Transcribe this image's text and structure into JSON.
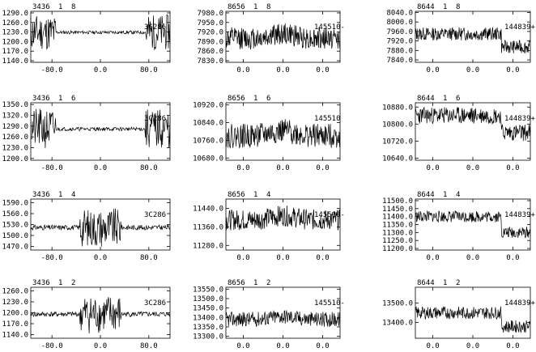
{
  "chart_data": [
    {
      "type": "line",
      "header": [
        "3436",
        "1",
        "8"
      ],
      "source": "3C286",
      "yticks": [
        "1290.0",
        "1260.0",
        "1230.0",
        "1200.0",
        "1170.0",
        "1140.0"
      ],
      "ylim": [
        1135,
        1295
      ],
      "xticks": [
        "-80.0",
        "0.0",
        "80.0"
      ],
      "xlim": [
        -115,
        115
      ],
      "xtick_values": [
        -80,
        0,
        80
      ],
      "shape": "edges",
      "base": 1229,
      "amp": 35,
      "seed": 11
    },
    {
      "type": "line",
      "header": [
        "8656",
        "1",
        "8"
      ],
      "source": "145510-",
      "yticks": [
        "7980.0",
        "7950.0",
        "7920.0",
        "7890.0",
        "7860.0",
        "7830.0"
      ],
      "ylim": [
        7825,
        7985
      ],
      "xticks": [
        "0.0",
        "0.0",
        "0.0"
      ],
      "xlim": [
        -115,
        115
      ],
      "xtick_values": [
        -80,
        0,
        80
      ],
      "shape": "bump",
      "base": 7900,
      "amp": 35,
      "seed": 12
    },
    {
      "type": "line",
      "header": [
        "8644",
        "1",
        "8"
      ],
      "source": "144839+",
      "yticks": [
        "8040.0",
        "8000.0",
        "7960.0",
        "7920.0",
        "7880.0",
        "7840.0"
      ],
      "ylim": [
        7830,
        8045
      ],
      "xticks": [
        "0.0",
        "0.0",
        "0.0"
      ],
      "xlim": [
        -115,
        115
      ],
      "xtick_values": [
        -80,
        0,
        80
      ],
      "shape": "step",
      "base": 7950,
      "base2": 7895,
      "amp": 35,
      "seed": 13
    },
    {
      "type": "line",
      "header": [
        "3436",
        "1",
        "6"
      ],
      "source": "3C286",
      "yticks": [
        "1350.0",
        "1320.0",
        "1290.0",
        "1260.0",
        "1230.0",
        "1200.0"
      ],
      "ylim": [
        1195,
        1355
      ],
      "xticks": [
        "-80.0",
        "0.0",
        "80.0"
      ],
      "xlim": [
        -115,
        115
      ],
      "xtick_values": [
        -80,
        0,
        80
      ],
      "shape": "edges",
      "base": 1282,
      "amp": 35,
      "seed": 21
    },
    {
      "type": "line",
      "header": [
        "8656",
        "1",
        "6"
      ],
      "source": "145510",
      "yticks": [
        "10920.0",
        "10840.0",
        "10760.0",
        "10680.0"
      ],
      "ylim": [
        10670,
        10930
      ],
      "xticks": [
        "0.0",
        "0.0",
        "0.0"
      ],
      "xlim": [
        -115,
        115
      ],
      "xtick_values": [
        -80,
        0,
        80
      ],
      "shape": "bump",
      "base": 10780,
      "amp": 55,
      "seed": 22
    },
    {
      "type": "line",
      "header": [
        "8644",
        "1",
        "6"
      ],
      "source": "144839+",
      "yticks": [
        "10880.0",
        "10800.0",
        "10720.0",
        "10640.0"
      ],
      "ylim": [
        10630,
        10900
      ],
      "xticks": [
        "0.0",
        "0.0",
        "0.0"
      ],
      "xlim": [
        -115,
        115
      ],
      "xtick_values": [
        -80,
        0,
        80
      ],
      "shape": "step",
      "base": 10840,
      "base2": 10760,
      "amp": 50,
      "seed": 23
    },
    {
      "type": "line",
      "header": [
        "3436",
        "1",
        "4"
      ],
      "source": "3C286",
      "yticks": [
        "1590.0",
        "1560.0",
        "1530.0",
        "1500.0",
        "1470.0"
      ],
      "ylim": [
        1460,
        1600
      ],
      "xticks": [
        "-80.0",
        "0.0",
        "80.0"
      ],
      "xlim": [
        -115,
        115
      ],
      "xtick_values": [
        -80,
        0,
        80
      ],
      "shape": "middle",
      "base": 1522,
      "amp": 35,
      "seed": 31
    },
    {
      "type": "line",
      "header": [
        "8656",
        "1",
        "4"
      ],
      "source": "145510-",
      "yticks": [
        "11440.0",
        "11360.0",
        "11280.0"
      ],
      "ylim": [
        11260,
        11480
      ],
      "xticks": [
        "0.0",
        "0.0",
        "0.0"
      ],
      "xlim": [
        -115,
        115
      ],
      "xtick_values": [
        -80,
        0,
        80
      ],
      "shape": "bump",
      "base": 11390,
      "amp": 45,
      "seed": 32
    },
    {
      "type": "line",
      "header": [
        "8644",
        "1",
        "4"
      ],
      "source": "144839+",
      "yticks": [
        "11500.0",
        "11450.0",
        "11400.0",
        "11350.0",
        "11300.0",
        "11250.0",
        "11200.0"
      ],
      "ylim": [
        11190,
        11510
      ],
      "xticks": [
        "0.0",
        "0.0",
        "0.0"
      ],
      "xlim": [
        -115,
        115
      ],
      "xtick_values": [
        -80,
        0,
        80
      ],
      "shape": "step",
      "base": 11400,
      "base2": 11300,
      "amp": 45,
      "seed": 33
    },
    {
      "type": "line",
      "header": [
        "3436",
        "1",
        "2"
      ],
      "source": "3C286",
      "yticks": [
        "1260.0",
        "1230.0",
        "1200.0",
        "1170.0",
        "1140.0"
      ],
      "ylim": [
        1130,
        1270
      ],
      "xticks": [
        "-80.0",
        "0.0",
        "80.0"
      ],
      "xlim": [
        -115,
        115
      ],
      "xtick_values": [
        -80,
        0,
        80
      ],
      "shape": "middle",
      "base": 1196,
      "amp": 35,
      "seed": 41
    },
    {
      "type": "line",
      "header": [
        "8656",
        "1",
        "2"
      ],
      "source": "145510-",
      "yticks": [
        "13550.0",
        "13500.0",
        "13450.0",
        "13400.0",
        "13350.0",
        "13300.0"
      ],
      "ylim": [
        13290,
        13560
      ],
      "xticks": [
        "0.0",
        "0.0",
        "0.0"
      ],
      "xlim": [
        -115,
        115
      ],
      "xtick_values": [
        -80,
        0,
        80
      ],
      "shape": "bump",
      "base": 13390,
      "amp": 40,
      "seed": 42
    },
    {
      "type": "line",
      "header": [
        "8644",
        "1",
        "2"
      ],
      "source": "144839+",
      "yticks": [
        "13500.0",
        "13400.0"
      ],
      "ylim": [
        13320,
        13580
      ],
      "xticks": [
        "0.0",
        "0.0",
        "0.0"
      ],
      "xlim": [
        -115,
        115
      ],
      "xtick_values": [
        -80,
        0,
        80
      ],
      "shape": "step",
      "base": 13450,
      "base2": 13380,
      "amp": 40,
      "seed": 43
    }
  ]
}
